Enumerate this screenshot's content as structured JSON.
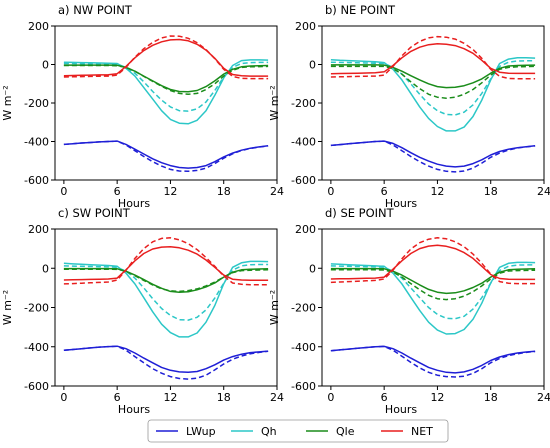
{
  "colors": {
    "LWup": "#1f1fd6",
    "Qh": "#2cc7c7",
    "Qle": "#1a8c1a",
    "NET": "#e81f1f"
  },
  "legend": [
    {
      "key": "LWup",
      "label": "LWup"
    },
    {
      "key": "Qh",
      "label": "Qh"
    },
    {
      "key": "Qle",
      "label": "Qle"
    },
    {
      "key": "NET",
      "label": "NET"
    }
  ],
  "chart_data": [
    {
      "type": "line",
      "title": "a) NW POINT",
      "xlabel": "Hours",
      "ylabel": "W m⁻²",
      "xlim": [
        -1,
        24
      ],
      "ylim": [
        -600,
        200
      ],
      "xticks": [
        0,
        6,
        12,
        18,
        24
      ],
      "yticks": [
        200,
        0,
        -200,
        -400,
        -600
      ],
      "x": [
        0,
        1,
        2,
        3,
        4,
        5,
        6,
        7,
        8,
        9,
        10,
        11,
        12,
        13,
        14,
        15,
        16,
        17,
        18,
        19,
        20,
        21,
        22,
        23
      ],
      "series": [
        {
          "name": "LWup",
          "style": "solid",
          "values": [
            -415,
            -412,
            -408,
            -405,
            -402,
            -400,
            -398,
            -415,
            -440,
            -465,
            -490,
            -510,
            -525,
            -535,
            -538,
            -535,
            -525,
            -505,
            -480,
            -460,
            -445,
            -435,
            -428,
            -422
          ]
        },
        {
          "name": "LWup",
          "style": "dashed",
          "values": [
            -415,
            -412,
            -408,
            -405,
            -402,
            -400,
            -398,
            -418,
            -448,
            -478,
            -505,
            -528,
            -545,
            -553,
            -555,
            -550,
            -538,
            -515,
            -487,
            -464,
            -447,
            -436,
            -429,
            -423
          ]
        },
        {
          "name": "Qh",
          "style": "solid",
          "values": [
            12,
            11,
            10,
            9,
            8,
            7,
            5,
            -20,
            -60,
            -120,
            -180,
            -240,
            -285,
            -305,
            -308,
            -290,
            -240,
            -160,
            -70,
            -5,
            20,
            24,
            24,
            23
          ]
        },
        {
          "name": "Qh",
          "style": "dashed",
          "values": [
            5,
            5,
            4,
            4,
            3,
            3,
            2,
            -15,
            -45,
            -90,
            -140,
            -185,
            -220,
            -240,
            -242,
            -230,
            -195,
            -135,
            -65,
            -15,
            5,
            10,
            11,
            11
          ]
        },
        {
          "name": "Qle",
          "style": "solid",
          "values": [
            -3,
            -3,
            -3,
            -3,
            -3,
            -3,
            -4,
            -15,
            -35,
            -60,
            -85,
            -110,
            -130,
            -140,
            -142,
            -135,
            -115,
            -85,
            -50,
            -25,
            -12,
            -8,
            -6,
            -5
          ]
        },
        {
          "name": "Qle",
          "style": "dashed",
          "values": [
            -5,
            -5,
            -5,
            -5,
            -5,
            -5,
            -6,
            -15,
            -35,
            -62,
            -88,
            -113,
            -135,
            -150,
            -155,
            -150,
            -130,
            -100,
            -60,
            -30,
            -15,
            -12,
            -11,
            -10
          ]
        },
        {
          "name": "NET",
          "style": "solid",
          "values": [
            -58,
            -57,
            -56,
            -55,
            -54,
            -53,
            -48,
            -10,
            35,
            72,
            100,
            118,
            128,
            130,
            123,
            105,
            75,
            32,
            -20,
            -52,
            -58,
            -60,
            -60,
            -60
          ]
        },
        {
          "name": "NET",
          "style": "dashed",
          "values": [
            -65,
            -64,
            -63,
            -62,
            -61,
            -60,
            -55,
            -15,
            38,
            82,
            115,
            138,
            148,
            147,
            136,
            113,
            78,
            30,
            -25,
            -62,
            -72,
            -73,
            -73,
            -73
          ]
        }
      ]
    },
    {
      "type": "line",
      "title": "b) NE POINT",
      "xlabel": "Hours",
      "ylabel": "W m⁻²",
      "xlim": [
        -1,
        24
      ],
      "ylim": [
        -600,
        200
      ],
      "xticks": [
        0,
        6,
        12,
        18,
        24
      ],
      "yticks": [
        200,
        0,
        -200,
        -400,
        -600
      ],
      "x": [
        0,
        1,
        2,
        3,
        4,
        5,
        6,
        7,
        8,
        9,
        10,
        11,
        12,
        13,
        14,
        15,
        16,
        17,
        18,
        19,
        20,
        21,
        22,
        23
      ],
      "series": [
        {
          "name": "LWup",
          "style": "solid",
          "values": [
            -420,
            -416,
            -412,
            -408,
            -404,
            -400,
            -398,
            -410,
            -432,
            -458,
            -482,
            -502,
            -518,
            -528,
            -532,
            -528,
            -515,
            -495,
            -470,
            -452,
            -440,
            -432,
            -427,
            -422
          ]
        },
        {
          "name": "LWup",
          "style": "dashed",
          "values": [
            -420,
            -416,
            -412,
            -408,
            -404,
            -400,
            -398,
            -418,
            -448,
            -478,
            -505,
            -528,
            -545,
            -555,
            -558,
            -553,
            -538,
            -512,
            -482,
            -460,
            -444,
            -434,
            -428,
            -423
          ]
        },
        {
          "name": "Qh",
          "style": "solid",
          "values": [
            25,
            22,
            20,
            18,
            16,
            14,
            10,
            -25,
            -80,
            -150,
            -220,
            -280,
            -322,
            -345,
            -345,
            -325,
            -270,
            -185,
            -80,
            5,
            28,
            35,
            35,
            33
          ]
        },
        {
          "name": "Qh",
          "style": "dashed",
          "values": [
            12,
            11,
            10,
            9,
            8,
            7,
            5,
            -15,
            -50,
            -100,
            -155,
            -205,
            -240,
            -260,
            -262,
            -248,
            -210,
            -150,
            -75,
            -10,
            12,
            18,
            19,
            19
          ]
        },
        {
          "name": "Qle",
          "style": "solid",
          "values": [
            -2,
            -2,
            -2,
            -2,
            -2,
            -2,
            -3,
            -15,
            -35,
            -58,
            -80,
            -100,
            -115,
            -120,
            -118,
            -110,
            -95,
            -75,
            -45,
            -20,
            -8,
            -5,
            -4,
            -3
          ]
        },
        {
          "name": "Qle",
          "style": "dashed",
          "values": [
            -10,
            -10,
            -10,
            -10,
            -10,
            -10,
            -10,
            -22,
            -50,
            -90,
            -125,
            -155,
            -170,
            -175,
            -170,
            -155,
            -130,
            -95,
            -55,
            -25,
            -15,
            -12,
            -11,
            -10
          ]
        },
        {
          "name": "NET",
          "style": "solid",
          "values": [
            -48,
            -47,
            -46,
            -45,
            -44,
            -43,
            -38,
            -5,
            35,
            68,
            90,
            103,
            108,
            105,
            98,
            82,
            58,
            22,
            -20,
            -40,
            -45,
            -46,
            -46,
            -46
          ]
        },
        {
          "name": "NET",
          "style": "dashed",
          "values": [
            -65,
            -64,
            -63,
            -62,
            -61,
            -60,
            -55,
            -10,
            45,
            90,
            120,
            138,
            145,
            142,
            132,
            110,
            78,
            32,
            -25,
            -62,
            -72,
            -74,
            -74,
            -74
          ]
        }
      ]
    },
    {
      "type": "line",
      "title": "c) SW POINT",
      "xlabel": "Hours",
      "ylabel": "W m⁻²",
      "xlim": [
        -1,
        24
      ],
      "ylim": [
        -600,
        200
      ],
      "xticks": [
        0,
        6,
        12,
        18,
        24
      ],
      "yticks": [
        200,
        0,
        -200,
        -400,
        -600
      ],
      "x": [
        0,
        1,
        2,
        3,
        4,
        5,
        6,
        7,
        8,
        9,
        10,
        11,
        12,
        13,
        14,
        15,
        16,
        17,
        18,
        19,
        20,
        21,
        22,
        23
      ],
      "series": [
        {
          "name": "LWup",
          "style": "solid",
          "values": [
            -418,
            -414,
            -410,
            -406,
            -402,
            -399,
            -397,
            -410,
            -432,
            -458,
            -482,
            -505,
            -520,
            -528,
            -530,
            -526,
            -512,
            -492,
            -468,
            -450,
            -438,
            -430,
            -426,
            -422
          ]
        },
        {
          "name": "LWup",
          "style": "dashed",
          "values": [
            -418,
            -414,
            -410,
            -406,
            -402,
            -399,
            -397,
            -418,
            -450,
            -482,
            -512,
            -535,
            -552,
            -562,
            -565,
            -560,
            -545,
            -518,
            -488,
            -464,
            -447,
            -436,
            -429,
            -423
          ]
        },
        {
          "name": "Qh",
          "style": "solid",
          "values": [
            25,
            22,
            20,
            18,
            16,
            14,
            10,
            -25,
            -80,
            -150,
            -222,
            -285,
            -328,
            -350,
            -350,
            -330,
            -275,
            -190,
            -80,
            5,
            28,
            35,
            35,
            34
          ]
        },
        {
          "name": "Qh",
          "style": "dashed",
          "values": [
            12,
            11,
            10,
            9,
            8,
            7,
            5,
            -15,
            -50,
            -100,
            -155,
            -205,
            -240,
            -262,
            -264,
            -250,
            -212,
            -152,
            -76,
            -10,
            12,
            18,
            19,
            19
          ]
        },
        {
          "name": "Qle",
          "style": "solid",
          "values": [
            -2,
            -2,
            -2,
            -2,
            -2,
            -2,
            -3,
            -15,
            -35,
            -58,
            -82,
            -102,
            -118,
            -122,
            -120,
            -110,
            -95,
            -75,
            -45,
            -20,
            -8,
            -5,
            -4,
            -3
          ]
        },
        {
          "name": "Qle",
          "style": "dashed",
          "values": [
            -5,
            -5,
            -5,
            -5,
            -5,
            -5,
            -6,
            -15,
            -38,
            -62,
            -85,
            -105,
            -115,
            -118,
            -114,
            -105,
            -90,
            -70,
            -45,
            -22,
            -12,
            -10,
            -9,
            -8
          ]
        },
        {
          "name": "NET",
          "style": "solid",
          "values": [
            -60,
            -59,
            -58,
            -57,
            -56,
            -55,
            -50,
            -8,
            38,
            75,
            98,
            108,
            110,
            104,
            92,
            72,
            42,
            5,
            -35,
            -56,
            -60,
            -61,
            -61,
            -61
          ]
        },
        {
          "name": "NET",
          "style": "dashed",
          "values": [
            -80,
            -78,
            -76,
            -74,
            -72,
            -70,
            -60,
            -10,
            50,
            100,
            135,
            152,
            155,
            145,
            125,
            95,
            55,
            10,
            -40,
            -75,
            -82,
            -84,
            -84,
            -84
          ]
        }
      ]
    },
    {
      "type": "line",
      "title": "d) SE POINT",
      "xlabel": "Hours",
      "ylabel": "W m⁻²",
      "xlim": [
        -1,
        24
      ],
      "ylim": [
        -600,
        200
      ],
      "xticks": [
        0,
        6,
        12,
        18,
        24
      ],
      "yticks": [
        200,
        0,
        -200,
        -400,
        -600
      ],
      "x": [
        0,
        1,
        2,
        3,
        4,
        5,
        6,
        7,
        8,
        9,
        10,
        11,
        12,
        13,
        14,
        15,
        16,
        17,
        18,
        19,
        20,
        21,
        22,
        23
      ],
      "series": [
        {
          "name": "LWup",
          "style": "solid",
          "values": [
            -420,
            -416,
            -412,
            -408,
            -404,
            -400,
            -398,
            -410,
            -432,
            -458,
            -482,
            -505,
            -520,
            -530,
            -533,
            -528,
            -515,
            -495,
            -470,
            -452,
            -440,
            -432,
            -427,
            -423
          ]
        },
        {
          "name": "LWup",
          "style": "dashed",
          "values": [
            -420,
            -416,
            -412,
            -408,
            -404,
            -400,
            -398,
            -418,
            -448,
            -480,
            -508,
            -530,
            -545,
            -552,
            -554,
            -550,
            -536,
            -512,
            -482,
            -460,
            -445,
            -436,
            -429,
            -424
          ]
        },
        {
          "name": "Qh",
          "style": "solid",
          "values": [
            22,
            20,
            18,
            16,
            14,
            12,
            10,
            -25,
            -80,
            -148,
            -215,
            -275,
            -315,
            -335,
            -333,
            -312,
            -260,
            -178,
            -75,
            5,
            25,
            30,
            30,
            29
          ]
        },
        {
          "name": "Qh",
          "style": "dashed",
          "values": [
            12,
            11,
            10,
            9,
            8,
            7,
            5,
            -15,
            -50,
            -100,
            -150,
            -200,
            -235,
            -255,
            -257,
            -245,
            -208,
            -150,
            -76,
            -12,
            10,
            16,
            17,
            17
          ]
        },
        {
          "name": "Qle",
          "style": "solid",
          "values": [
            -2,
            -2,
            -2,
            -2,
            -2,
            -2,
            -3,
            -15,
            -35,
            -60,
            -85,
            -108,
            -122,
            -128,
            -125,
            -115,
            -98,
            -76,
            -45,
            -20,
            -8,
            -5,
            -4,
            -3
          ]
        },
        {
          "name": "Qle",
          "style": "dashed",
          "values": [
            -8,
            -8,
            -8,
            -8,
            -8,
            -8,
            -9,
            -20,
            -45,
            -78,
            -110,
            -138,
            -155,
            -160,
            -155,
            -142,
            -120,
            -90,
            -55,
            -25,
            -14,
            -12,
            -11,
            -10
          ]
        },
        {
          "name": "NET",
          "style": "solid",
          "values": [
            -55,
            -54,
            -53,
            -52,
            -51,
            -50,
            -45,
            -5,
            38,
            75,
            100,
            113,
            117,
            112,
            100,
            80,
            50,
            10,
            -32,
            -52,
            -56,
            -57,
            -57,
            -57
          ]
        },
        {
          "name": "NET",
          "style": "dashed",
          "values": [
            -72,
            -70,
            -68,
            -66,
            -64,
            -62,
            -55,
            -10,
            48,
            98,
            130,
            148,
            155,
            150,
            135,
            110,
            72,
            25,
            -30,
            -68,
            -76,
            -78,
            -78,
            -78
          ]
        }
      ]
    }
  ]
}
